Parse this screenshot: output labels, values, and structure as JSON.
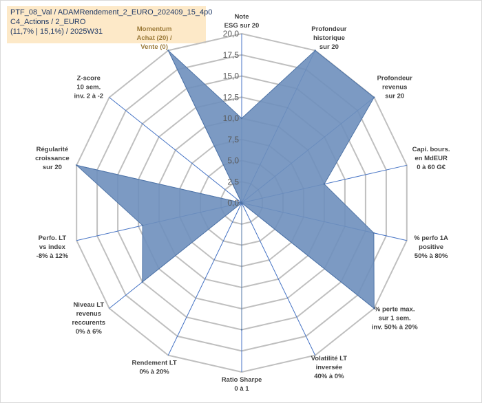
{
  "title_box": {
    "line1": "PTF_08_Val / ADAMRendement_2_EURO_202409_15_4p0",
    "line2": "C4_Actions / 2_EURO",
    "line3": "(11,7% | 15,1%) / 2025W31"
  },
  "chart_data": {
    "type": "radar",
    "title": "",
    "rmin": 0,
    "rmax": 20,
    "ticks": [
      0,
      2.5,
      5,
      7.5,
      10,
      12.5,
      15,
      17.5,
      20
    ],
    "tick_labels": [
      "0,0",
      "2,5",
      "5,0",
      "7,5",
      "10,0",
      "12,5",
      "15,0",
      "17,5",
      "20,0"
    ],
    "categories": [
      [
        "Note",
        "ESG sur 20"
      ],
      [
        "Profondeur",
        "historique",
        "sur 20"
      ],
      [
        "Profondeur",
        "revenus",
        "sur 20"
      ],
      [
        "Capi. bours.",
        "en MdEUR",
        "0 à 60 G€"
      ],
      [
        "% perfo 1A",
        "positive",
        "50% à 80%"
      ],
      [
        "% perte max.",
        "sur 1 sem.",
        "inv. 50% à 20%"
      ],
      [
        "Volatilité LT",
        "inversée",
        "40% à 0%"
      ],
      [
        "Ratio Sharpe",
        "0 à 1"
      ],
      [
        "Rendement LT",
        "0% à 20%"
      ],
      [
        "Niveau LT",
        "revenus",
        "reccurents",
        "0% à 6%"
      ],
      [
        "Perfo. LT",
        "vs index",
        "-8% à 12%"
      ],
      [
        "Régularité",
        "croissance",
        "sur 20"
      ],
      [
        "Z-score",
        "10 sem.",
        "inv. 2 à -2"
      ],
      [
        "Momentum",
        "Achat (20) /",
        "Vente (0)"
      ]
    ],
    "highlight_category": 13,
    "series": [
      {
        "values": [
          10,
          20,
          20,
          10,
          16,
          20,
          0,
          15,
          0,
          15,
          12,
          20,
          0,
          20
        ],
        "color": "#4f74a6",
        "fill": "#6e8fbd",
        "fill_opacity": 0.9
      }
    ],
    "grid": true,
    "grid_color": "#bfbfbf",
    "spoke_color": "#4472c4"
  }
}
